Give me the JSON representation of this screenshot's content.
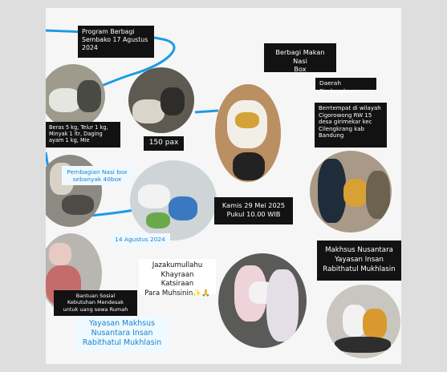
{
  "texts": {
    "program_title": "Program Berbagi\nSembako 17 Agustus\n2024",
    "makan_title": "Berbagi Makan Nasi\nBox",
    "daerah": "Daerah Sindanglaya",
    "tempat": "Berrtempat di wilayah\nCigorowong RW 15\ndesa girimekar kec\nCilengkrang kab\nBandung",
    "beras": "Beras 5 kg, Telur 1 kg,\nMinyak 1 ltr, Daging\nayam 1 kg, Mie",
    "pax": "150 pax",
    "pembagian": "Pembagian Nasi box\nsebanyak 40box",
    "kamis": "Kamis 29 Mei 2025\nPukul 10.00 WIB",
    "agustus": "14 Agustus 2024",
    "jazaku": "Jazakumullahu\nKhayraan Katsiraan\nPara Muhsinin✨🙏",
    "makhsus_dark": "Makhsus Nusantara\nYayasan Insan\nRabithatul Mukhlasin",
    "bantuan": "Bantuan Sosial\nKebutuhan Mendesak\nuntuk uang sewa Rumah",
    "yayasan": "Yayasan Makhsus\nNusantara Insan\nRabithatul Mukhlasin"
  },
  "colors": {
    "accent_blue": "#1a9be6",
    "dark_box": "#121212",
    "light_box_text": "#1f7fd0"
  }
}
